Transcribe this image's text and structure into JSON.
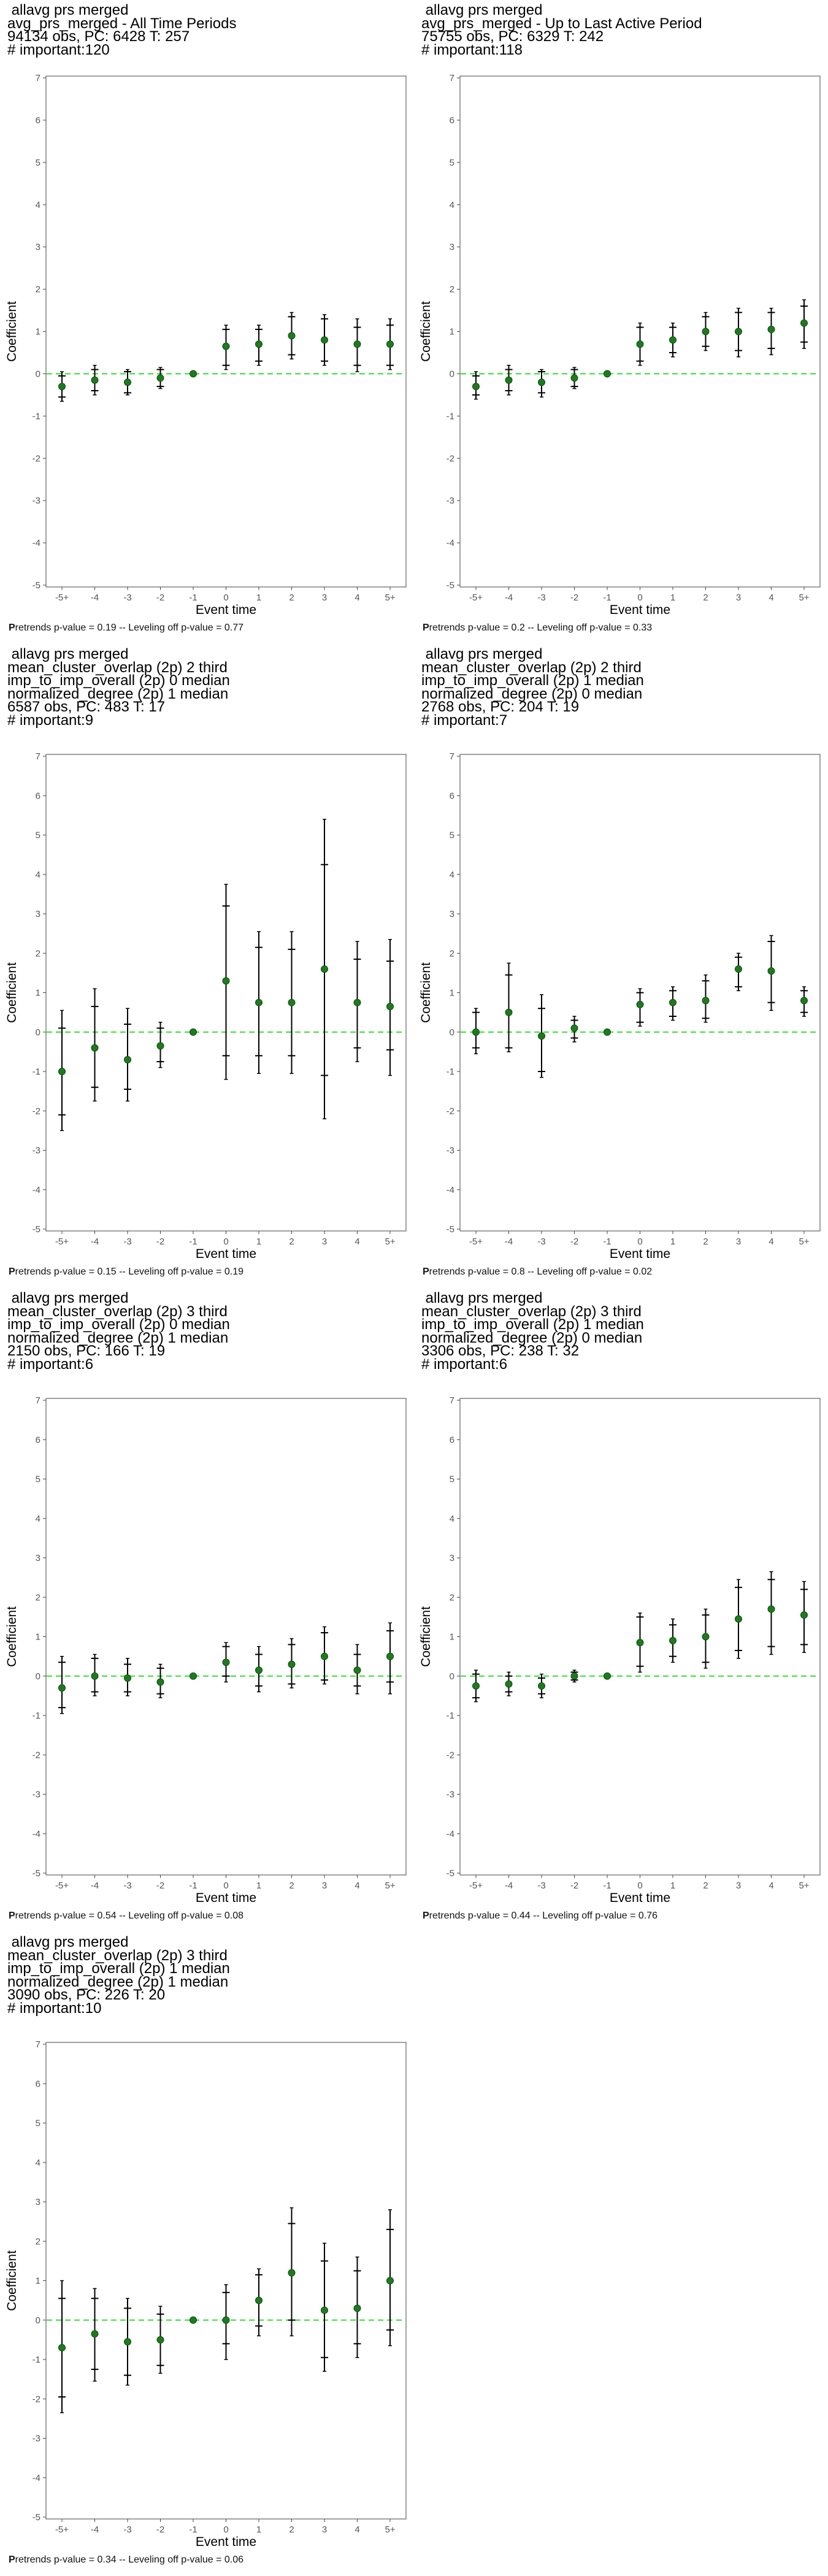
{
  "layout_note": "eventstudy grid",
  "chart_data": [
    {
      "type": "scatter",
      "title_lines": [
        " allavg prs merged",
        "avg_prs_merged - All Time Periods",
        "94134 obs, PC: 6428 T: 257",
        "# important:120"
      ],
      "xlabel": "Event time",
      "ylabel": "Coefficient",
      "categories": [
        "-5+",
        "-4",
        "-3",
        "-2",
        "-1",
        "0",
        "1",
        "2",
        "3",
        "4",
        "5+"
      ],
      "ylim": [
        -5,
        7
      ],
      "yticks": [
        "-5",
        "-4",
        "-3",
        "-2",
        "-1",
        "0",
        "1",
        "2",
        "3",
        "4",
        "5",
        "6",
        "7"
      ],
      "estimates": [
        -0.3,
        -0.15,
        -0.2,
        -0.1,
        0,
        0.65,
        0.7,
        0.9,
        0.8,
        0.7,
        0.7
      ],
      "ci90": [
        [
          -0.55,
          -0.05
        ],
        [
          -0.4,
          0.1
        ],
        [
          -0.45,
          0.05
        ],
        [
          -0.3,
          0.1
        ],
        [
          0,
          0
        ],
        [
          0.2,
          1.05
        ],
        [
          0.3,
          1.05
        ],
        [
          0.45,
          1.35
        ],
        [
          0.3,
          1.3
        ],
        [
          0.2,
          1.1
        ],
        [
          0.2,
          1.15
        ]
      ],
      "ci95": [
        [
          -0.65,
          0.05
        ],
        [
          -0.5,
          0.2
        ],
        [
          -0.5,
          0.1
        ],
        [
          -0.35,
          0.15
        ],
        [
          0,
          0
        ],
        [
          0.1,
          1.15
        ],
        [
          0.2,
          1.15
        ],
        [
          0.35,
          1.45
        ],
        [
          0.2,
          1.4
        ],
        [
          0.05,
          1.3
        ],
        [
          0.1,
          1.3
        ]
      ],
      "footnote_bold": "P",
      "footnote_rest": "retrends p-value = 0.19 -- Leveling off p-value = 0.77"
    },
    {
      "type": "scatter",
      "title_lines": [
        " allavg prs merged",
        "avg_prs_merged - Up to Last Active Period",
        "75755 obs, PC: 6329 T: 242",
        "# important:118"
      ],
      "xlabel": "Event time",
      "ylabel": "Coefficient",
      "categories": [
        "-5+",
        "-4",
        "-3",
        "-2",
        "-1",
        "0",
        "1",
        "2",
        "3",
        "4",
        "5+"
      ],
      "ylim": [
        -5,
        7
      ],
      "yticks": [
        "-5",
        "-4",
        "-3",
        "-2",
        "-1",
        "0",
        "1",
        "2",
        "3",
        "4",
        "5",
        "6",
        "7"
      ],
      "estimates": [
        -0.3,
        -0.15,
        -0.2,
        -0.1,
        0,
        0.7,
        0.8,
        1.0,
        1.0,
        1.05,
        1.2
      ],
      "ci90": [
        [
          -0.5,
          -0.05
        ],
        [
          -0.4,
          0.1
        ],
        [
          -0.45,
          0.05
        ],
        [
          -0.3,
          0.1
        ],
        [
          0,
          0
        ],
        [
          0.3,
          1.1
        ],
        [
          0.5,
          1.1
        ],
        [
          0.65,
          1.35
        ],
        [
          0.55,
          1.45
        ],
        [
          0.6,
          1.45
        ],
        [
          0.75,
          1.6
        ]
      ],
      "ci95": [
        [
          -0.6,
          0.05
        ],
        [
          -0.5,
          0.2
        ],
        [
          -0.55,
          0.1
        ],
        [
          -0.35,
          0.15
        ],
        [
          0,
          0
        ],
        [
          0.2,
          1.2
        ],
        [
          0.4,
          1.2
        ],
        [
          0.55,
          1.45
        ],
        [
          0.4,
          1.55
        ],
        [
          0.45,
          1.55
        ],
        [
          0.6,
          1.75
        ]
      ],
      "footnote_bold": "P",
      "footnote_rest": "retrends p-value = 0.2 -- Leveling off p-value = 0.33"
    },
    {
      "type": "scatter",
      "title_lines": [
        " allavg prs merged",
        "mean_cluster_overlap (2p) 2 third",
        "imp_to_imp_overall (2p) 0 median",
        "normalized_degree (2p) 1 median",
        "6587 obs, PC: 483 T: 17",
        "# important:9"
      ],
      "xlabel": "Event time",
      "ylabel": "Coefficient",
      "categories": [
        "-5+",
        "-4",
        "-3",
        "-2",
        "-1",
        "0",
        "1",
        "2",
        "3",
        "4",
        "5+"
      ],
      "ylim": [
        -5,
        7
      ],
      "yticks": [
        "-5",
        "-4",
        "-3",
        "-2",
        "-1",
        "0",
        "1",
        "2",
        "3",
        "4",
        "5",
        "6",
        "7"
      ],
      "estimates": [
        -1.0,
        -0.4,
        -0.7,
        -0.35,
        0,
        1.3,
        0.75,
        0.75,
        1.6,
        0.75,
        0.65
      ],
      "ci90": [
        [
          -2.1,
          0.1
        ],
        [
          -1.4,
          0.65
        ],
        [
          -1.45,
          0.2
        ],
        [
          -0.75,
          0.1
        ],
        [
          0,
          0
        ],
        [
          -0.6,
          3.2
        ],
        [
          -0.6,
          2.15
        ],
        [
          -0.6,
          2.1
        ],
        [
          -1.1,
          4.25
        ],
        [
          -0.4,
          1.85
        ],
        [
          -0.45,
          1.8
        ]
      ],
      "ci95": [
        [
          -2.5,
          0.55
        ],
        [
          -1.75,
          1.1
        ],
        [
          -1.75,
          0.6
        ],
        [
          -0.9,
          0.25
        ],
        [
          0,
          0
        ],
        [
          -1.2,
          3.75
        ],
        [
          -1.05,
          2.55
        ],
        [
          -1.05,
          2.55
        ],
        [
          -2.2,
          5.4
        ],
        [
          -0.75,
          2.3
        ],
        [
          -1.1,
          2.35
        ]
      ],
      "footnote_bold": "P",
      "footnote_rest": "retrends p-value = 0.15 -- Leveling off p-value = 0.19"
    },
    {
      "type": "scatter",
      "title_lines": [
        " allavg prs merged",
        "mean_cluster_overlap (2p) 2 third",
        "imp_to_imp_overall (2p) 1 median",
        "normalized_degree (2p) 0 median",
        "2768 obs, PC: 204 T: 19",
        "# important:7"
      ],
      "xlabel": "Event time",
      "ylabel": "Coefficient",
      "categories": [
        "-5+",
        "-4",
        "-3",
        "-2",
        "-1",
        "0",
        "1",
        "2",
        "3",
        "4",
        "5+"
      ],
      "ylim": [
        -5,
        7
      ],
      "yticks": [
        "-5",
        "-4",
        "-3",
        "-2",
        "-1",
        "0",
        "1",
        "2",
        "3",
        "4",
        "5",
        "6",
        "7"
      ],
      "estimates": [
        0.0,
        0.5,
        -0.1,
        0.1,
        0,
        0.7,
        0.75,
        0.8,
        1.6,
        1.55,
        0.8
      ],
      "ci90": [
        [
          -0.4,
          0.5
        ],
        [
          -0.4,
          1.45
        ],
        [
          -1.0,
          0.6
        ],
        [
          -0.15,
          0.3
        ],
        [
          0,
          0
        ],
        [
          0.25,
          1.0
        ],
        [
          0.4,
          1.05
        ],
        [
          0.35,
          1.3
        ],
        [
          1.15,
          1.9
        ],
        [
          0.75,
          2.3
        ],
        [
          0.5,
          1.05
        ]
      ],
      "ci95": [
        [
          -0.55,
          0.6
        ],
        [
          -0.5,
          1.75
        ],
        [
          -1.15,
          0.95
        ],
        [
          -0.25,
          0.4
        ],
        [
          0,
          0
        ],
        [
          0.15,
          1.1
        ],
        [
          0.3,
          1.15
        ],
        [
          0.25,
          1.45
        ],
        [
          1.05,
          2.0
        ],
        [
          0.55,
          2.45
        ],
        [
          0.4,
          1.15
        ]
      ],
      "footnote_bold": "P",
      "footnote_rest": "retrends p-value = 0.8 -- Leveling off p-value = 0.02"
    },
    {
      "type": "scatter",
      "title_lines": [
        " allavg prs merged",
        "mean_cluster_overlap (2p) 3 third",
        "imp_to_imp_overall (2p) 0 median",
        "normalized_degree (2p) 1 median",
        "2150 obs, PC: 166 T: 19",
        "# important:6"
      ],
      "xlabel": "Event time",
      "ylabel": "Coefficient",
      "categories": [
        "-5+",
        "-4",
        "-3",
        "-2",
        "-1",
        "0",
        "1",
        "2",
        "3",
        "4",
        "5+"
      ],
      "ylim": [
        -5,
        7
      ],
      "yticks": [
        "-5",
        "-4",
        "-3",
        "-2",
        "-1",
        "0",
        "1",
        "2",
        "3",
        "4",
        "5",
        "6",
        "7"
      ],
      "estimates": [
        -0.3,
        0.0,
        -0.05,
        -0.15,
        0,
        0.35,
        0.15,
        0.3,
        0.5,
        0.15,
        0.5
      ],
      "ci90": [
        [
          -0.8,
          0.35
        ],
        [
          -0.4,
          0.45
        ],
        [
          -0.4,
          0.3
        ],
        [
          -0.45,
          0.2
        ],
        [
          0,
          0
        ],
        [
          0.0,
          0.75
        ],
        [
          -0.25,
          0.55
        ],
        [
          -0.2,
          0.8
        ],
        [
          -0.1,
          1.1
        ],
        [
          -0.25,
          0.55
        ],
        [
          -0.15,
          1.15
        ]
      ],
      "ci95": [
        [
          -0.95,
          0.5
        ],
        [
          -0.5,
          0.55
        ],
        [
          -0.5,
          0.45
        ],
        [
          -0.55,
          0.3
        ],
        [
          0,
          0
        ],
        [
          -0.15,
          0.85
        ],
        [
          -0.4,
          0.75
        ],
        [
          -0.3,
          0.95
        ],
        [
          -0.2,
          1.25
        ],
        [
          -0.45,
          0.8
        ],
        [
          -0.45,
          1.35
        ]
      ],
      "footnote_bold": "P",
      "footnote_rest": "retrends p-value = 0.54 -- Leveling off p-value = 0.08"
    },
    {
      "type": "scatter",
      "title_lines": [
        " allavg prs merged",
        "mean_cluster_overlap (2p) 3 third",
        "imp_to_imp_overall (2p) 1 median",
        "normalized_degree (2p) 0 median",
        "3306 obs, PC: 238 T: 32",
        "# important:6"
      ],
      "xlabel": "Event time",
      "ylabel": "Coefficient",
      "categories": [
        "-5+",
        "-4",
        "-3",
        "-2",
        "-1",
        "0",
        "1",
        "2",
        "3",
        "4",
        "5+"
      ],
      "ylim": [
        -5,
        7
      ],
      "yticks": [
        "-5",
        "-4",
        "-3",
        "-2",
        "-1",
        "0",
        "1",
        "2",
        "3",
        "4",
        "5",
        "6",
        "7"
      ],
      "estimates": [
        -0.25,
        -0.2,
        -0.25,
        0.0,
        0,
        0.85,
        0.9,
        1.0,
        1.45,
        1.7,
        1.55
      ],
      "ci90": [
        [
          -0.55,
          0.05
        ],
        [
          -0.4,
          0.0
        ],
        [
          -0.45,
          -0.05
        ],
        [
          -0.1,
          0.1
        ],
        [
          0,
          0
        ],
        [
          0.25,
          1.5
        ],
        [
          0.5,
          1.3
        ],
        [
          0.35,
          1.55
        ],
        [
          0.65,
          2.25
        ],
        [
          0.75,
          2.45
        ],
        [
          0.8,
          2.2
        ]
      ],
      "ci95": [
        [
          -0.65,
          0.15
        ],
        [
          -0.5,
          0.1
        ],
        [
          -0.55,
          0.05
        ],
        [
          -0.15,
          0.15
        ],
        [
          0,
          0
        ],
        [
          0.1,
          1.6
        ],
        [
          0.35,
          1.45
        ],
        [
          0.2,
          1.7
        ],
        [
          0.45,
          2.45
        ],
        [
          0.55,
          2.65
        ],
        [
          0.6,
          2.4
        ]
      ],
      "footnote_bold": "P",
      "footnote_rest": "retrends p-value = 0.44 -- Leveling off p-value = 0.76"
    },
    {
      "type": "scatter",
      "title_lines": [
        " allavg prs merged",
        "mean_cluster_overlap (2p) 3 third",
        "imp_to_imp_overall (2p) 1 median",
        "normalized_degree (2p) 1 median",
        "3090 obs, PC: 226 T: 20",
        "# important:10"
      ],
      "xlabel": "Event time",
      "ylabel": "Coefficient",
      "categories": [
        "-5+",
        "-4",
        "-3",
        "-2",
        "-1",
        "0",
        "1",
        "2",
        "3",
        "4",
        "5+"
      ],
      "ylim": [
        -5,
        7
      ],
      "yticks": [
        "-5",
        "-4",
        "-3",
        "-2",
        "-1",
        "0",
        "1",
        "2",
        "3",
        "4",
        "5",
        "6",
        "7"
      ],
      "estimates": [
        -0.7,
        -0.35,
        -0.55,
        -0.5,
        0,
        0.0,
        0.5,
        1.2,
        0.25,
        0.3,
        1.0
      ],
      "ci90": [
        [
          -1.95,
          0.55
        ],
        [
          -1.25,
          0.55
        ],
        [
          -1.4,
          0.3
        ],
        [
          -1.15,
          0.15
        ],
        [
          0,
          0
        ],
        [
          -0.6,
          0.7
        ],
        [
          -0.15,
          1.15
        ],
        [
          0.0,
          2.45
        ],
        [
          -0.95,
          1.5
        ],
        [
          -0.6,
          1.25
        ],
        [
          -0.25,
          2.3
        ]
      ],
      "ci95": [
        [
          -2.35,
          1.0
        ],
        [
          -1.55,
          0.8
        ],
        [
          -1.65,
          0.55
        ],
        [
          -1.35,
          0.35
        ],
        [
          0,
          0
        ],
        [
          -1.0,
          0.9
        ],
        [
          -0.4,
          1.3
        ],
        [
          -0.4,
          2.85
        ],
        [
          -1.3,
          1.95
        ],
        [
          -0.95,
          1.6
        ],
        [
          -0.65,
          2.8
        ]
      ],
      "footnote_bold": "P",
      "footnote_rest": "retrends p-value = 0.34 -- Leveling off p-value = 0.06"
    }
  ],
  "colors": {
    "point": "#1f7a1f",
    "zero_line": "#33dd33",
    "error_bar": "#000000",
    "axis": "#444444",
    "tick_text": "#555555"
  }
}
